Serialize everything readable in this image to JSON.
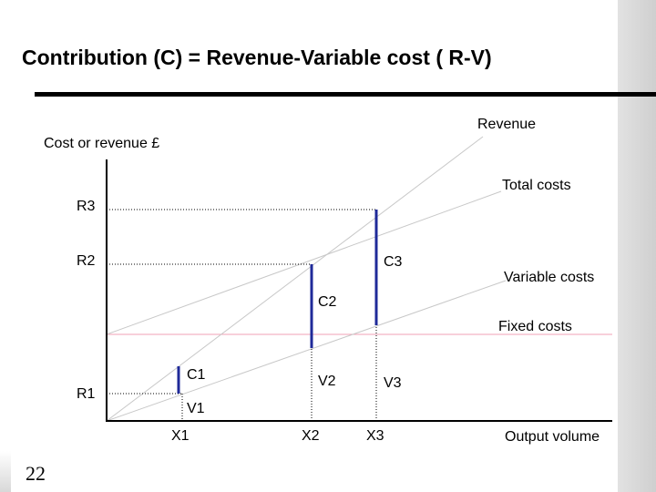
{
  "slide": {
    "title": "Contribution (C) = Revenue-Variable cost ( R-V)",
    "page_number": "22"
  },
  "diagram": {
    "y_axis_label": "Cost or revenue £",
    "x_axis_label": "Output volume",
    "line_labels": {
      "revenue": "Revenue",
      "total_costs": "Total costs",
      "variable_costs": "Variable costs",
      "fixed_costs": "Fixed costs"
    },
    "revenue_levels": [
      "R3",
      "R2",
      "R1"
    ],
    "contribution_labels": [
      "C1",
      "C2",
      "C3"
    ],
    "variable_cost_labels": [
      "V1",
      "V2",
      "V3"
    ],
    "output_levels": [
      "X1",
      "X2",
      "X3"
    ],
    "colors": {
      "contribution_bar": "#1f2a99",
      "revenue_line": "#c8c8c8",
      "fixed_costs_line": "#f0a0b4",
      "axis": "#000000"
    }
  }
}
